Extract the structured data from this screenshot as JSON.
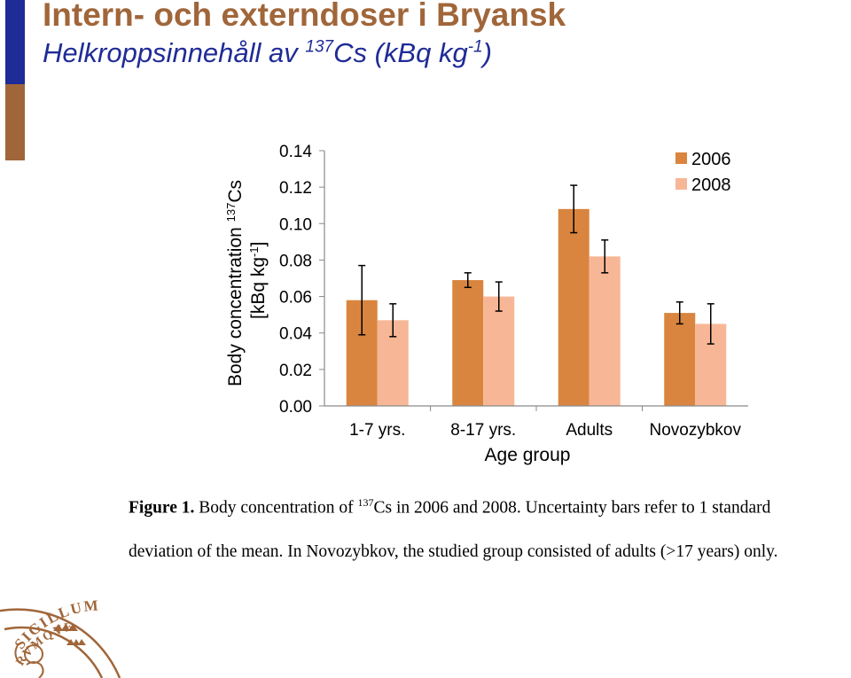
{
  "slide": {
    "title": "Intern- och externdoser i Bryansk",
    "subtitle_prefix": "Helkroppsinnehåll av ",
    "subtitle_sup": "137",
    "subtitle_suffix": "Cs (kBq kg",
    "subtitle_sup2": "-1",
    "subtitle_end": ")",
    "colors": {
      "title": "#a0663a",
      "subtitle": "#1f2b96",
      "bar_blue": "#1f2b96",
      "bar_brown": "#a0663a"
    }
  },
  "chart_data": {
    "type": "bar",
    "categories": [
      "1-7 yrs.",
      "8-17 yrs.",
      "Adults",
      "Novozybkov"
    ],
    "series": [
      {
        "name": "2006",
        "color": "#d9853f",
        "values": [
          0.058,
          0.069,
          0.108,
          0.051
        ],
        "errors": [
          0.019,
          0.004,
          0.013,
          0.006
        ]
      },
      {
        "name": "2008",
        "color": "#f7b796",
        "values": [
          0.047,
          0.06,
          0.082,
          0.045
        ],
        "errors": [
          0.009,
          0.008,
          0.009,
          0.011
        ]
      }
    ],
    "ylim": [
      0,
      0.14
    ],
    "yticks": [
      "0.00",
      "0.02",
      "0.04",
      "0.06",
      "0.08",
      "0.10",
      "0.12",
      "0.14"
    ],
    "xlabel": "Age group",
    "ylabel_line1": "Body concentration ",
    "ylabel_line1_sup": "137",
    "ylabel_line1_end": "Cs",
    "ylabel_line2": "[kBq kg",
    "ylabel_line2_sup": "-1",
    "ylabel_line2_end": "]",
    "legend_position": "top-right",
    "grid": false
  },
  "caption": {
    "figure_label": "Figure 1.",
    "line1_before_sup": " Body concentration of ",
    "line1_sup": "137",
    "line1_after": "Cs in 2006 and 2008. Uncertainty bars refer to 1 standard",
    "line2": "deviation of the mean. In Novozybkov, the studied group consisted of adults (>17 years) only."
  },
  "logo": {
    "seal_text": "SIGILLUM",
    "seal_text2": "RVMQVE"
  }
}
